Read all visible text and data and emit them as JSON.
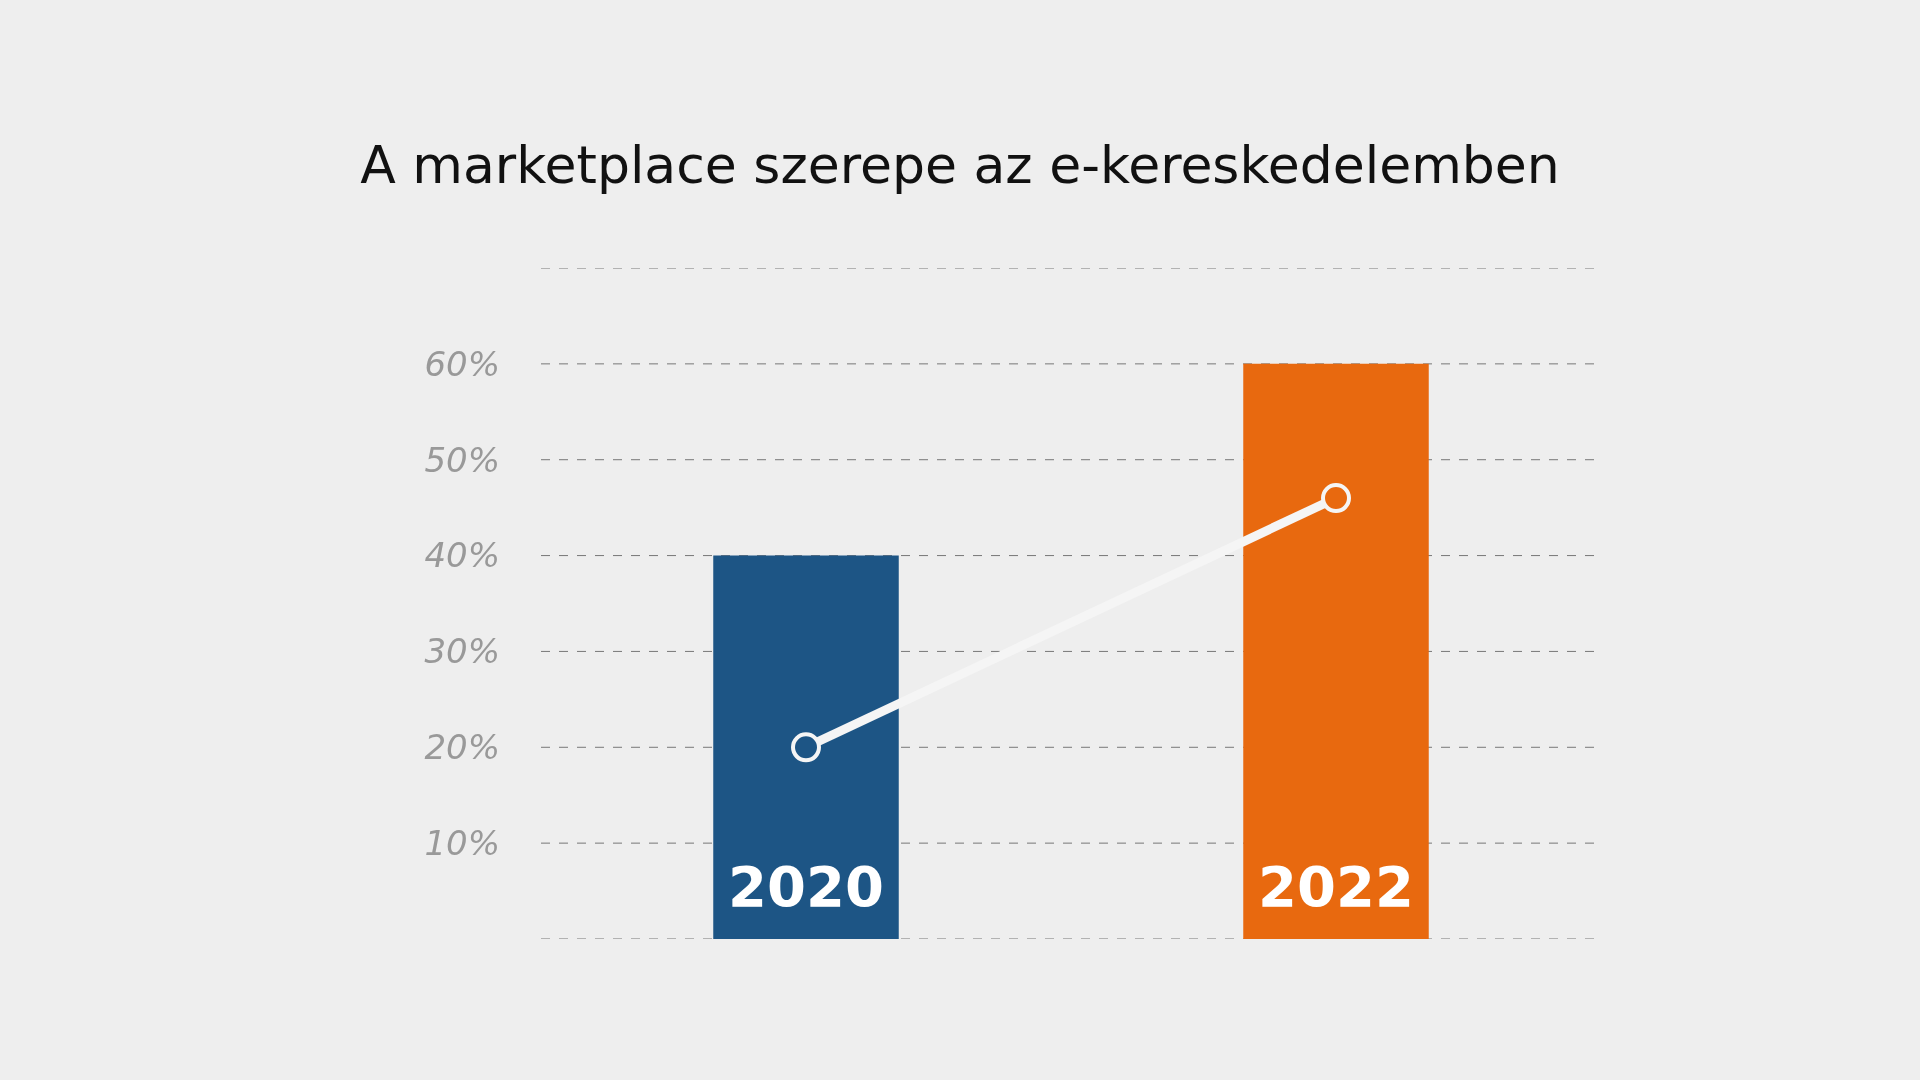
{
  "chart_data": {
    "type": "bar",
    "title": "A marketplace szerepe az e-kereskedelemben",
    "categories": [
      "2020",
      "2022"
    ],
    "series": [
      {
        "colors": [
          "#1d5585",
          "#e8690f"
        ],
        "values": [
          40,
          60
        ]
      },
      {
        "type": "line",
        "color": "#f5f5f5",
        "values": [
          20,
          46
        ],
        "marker": "circle"
      }
    ],
    "ylim": [
      0,
      70
    ],
    "yticks": [
      {
        "value": 0,
        "label": null
      },
      {
        "value": 10,
        "label": "10%"
      },
      {
        "value": 20,
        "label": "20%"
      },
      {
        "value": 30,
        "label": "30%"
      },
      {
        "value": 40,
        "label": "40%"
      },
      {
        "value": 50,
        "label": "50%"
      },
      {
        "value": 60,
        "label": "60%"
      },
      {
        "value": 70,
        "label": null
      }
    ],
    "grid": "y"
  }
}
